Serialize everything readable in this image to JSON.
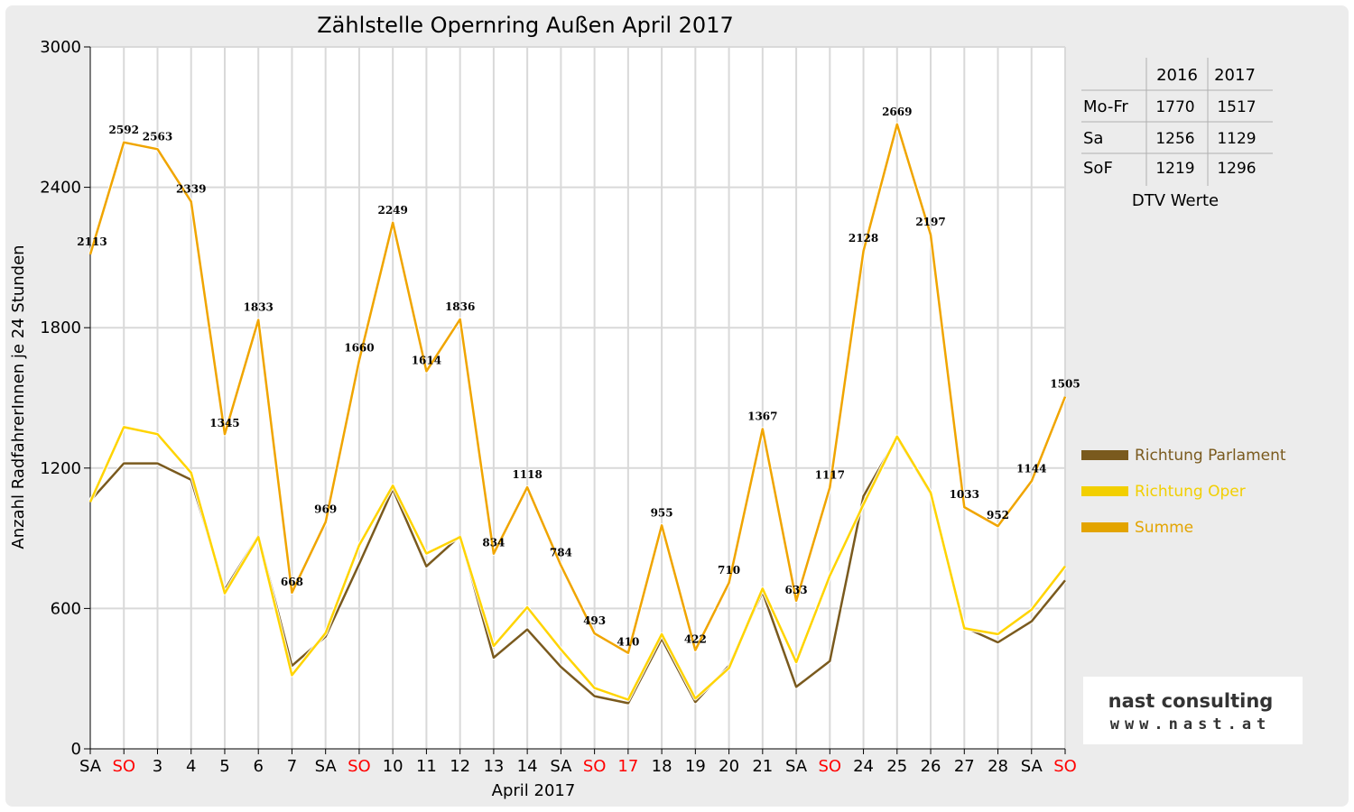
{
  "chart_data": {
    "type": "line",
    "title": "Zählstelle Opernring Außen April 2017",
    "xlabel": "April 2017",
    "ylabel": "Anzahl RadfahrerInnen je 24 Stunden",
    "ylim": [
      0,
      3000
    ],
    "yticks": [
      0,
      600,
      1200,
      1800,
      2400,
      3000
    ],
    "grid": true,
    "legend_position": "right",
    "categories": [
      "SA",
      "SO",
      "3",
      "4",
      "5",
      "6",
      "7",
      "SA",
      "SO",
      "10",
      "11",
      "12",
      "13",
      "14",
      "SA",
      "SO",
      "17",
      "18",
      "19",
      "20",
      "21",
      "SA",
      "SO",
      "24",
      "25",
      "26",
      "27",
      "28",
      "SA",
      "SO"
    ],
    "red_categories": [
      1,
      8,
      15,
      16,
      22,
      29
    ],
    "series": [
      {
        "name": "Richtung Parlament",
        "color": "#7a5a1e",
        "values": [
          1060,
          1220,
          1220,
          1150,
          680,
          910,
          355,
          480,
          790,
          1110,
          780,
          910,
          390,
          510,
          350,
          225,
          195,
          470,
          200,
          355,
          670,
          265,
          375,
          1080,
          1330,
          1090,
          520,
          455,
          545,
          720
        ]
      },
      {
        "name": "Richtung Oper",
        "color": "#ffd400",
        "values": [
          1055,
          1375,
          1345,
          1180,
          665,
          905,
          315,
          495,
          870,
          1125,
          835,
          905,
          440,
          605,
          425,
          260,
          210,
          490,
          215,
          345,
          685,
          370,
          740,
          1045,
          1335,
          1095,
          515,
          490,
          595,
          780
        ]
      },
      {
        "name": "Summe",
        "color": "#f0a500",
        "values": [
          2113,
          2592,
          2563,
          2339,
          1345,
          1833,
          668,
          969,
          1660,
          2249,
          1614,
          1836,
          834,
          1118,
          784,
          493,
          410,
          955,
          422,
          710,
          1367,
          633,
          1117,
          2128,
          2669,
          2197,
          1033,
          952,
          1144,
          1505
        ]
      }
    ],
    "data_labels": [
      "2113",
      "2592",
      "2563",
      "2339",
      "1345",
      "1833",
      "668",
      "969",
      "1660",
      "2249",
      "1614",
      "1836",
      "834",
      "1118",
      "784",
      "493",
      "410",
      "955",
      "422",
      "710",
      "1367",
      "633",
      "1117",
      "2128",
      "2669",
      "2197",
      "1033",
      "952",
      "1144",
      "1505"
    ]
  },
  "dtv_table": {
    "headers": [
      "",
      "2016",
      "2017"
    ],
    "rows": [
      {
        "label": "Mo-Fr",
        "v2016": "1770",
        "v2017": "1517"
      },
      {
        "label": "Sa",
        "v2016": "1256",
        "v2017": "1129"
      },
      {
        "label": "SoF",
        "v2016": "1219",
        "v2017": "1296"
      }
    ],
    "caption": "DTV Werte"
  },
  "logo": {
    "line1": "nast consulting",
    "line2": "www.nast.at"
  },
  "colors": {
    "weekend_red": "#ff0000",
    "grid": "#d9d9d9",
    "legend_parlament": "#7a5a1e",
    "legend_oper": "#f2cf00",
    "legend_summe": "#e3a400"
  }
}
